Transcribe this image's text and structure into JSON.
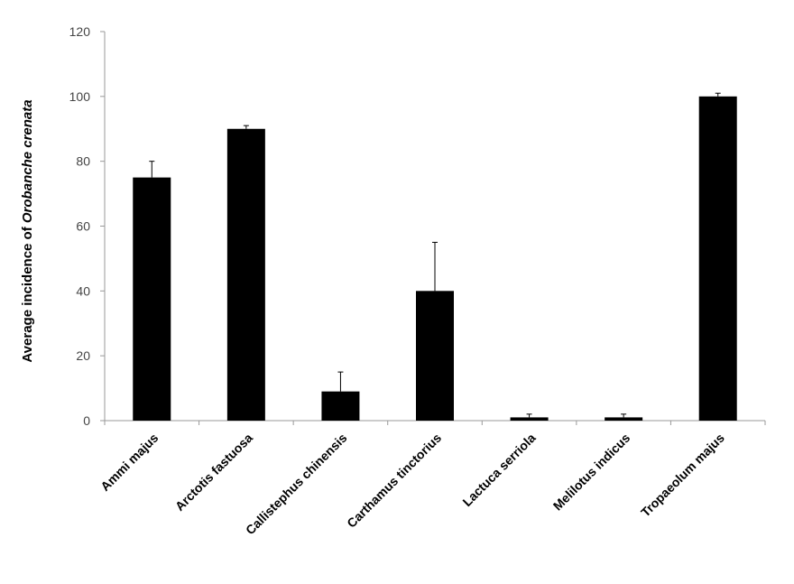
{
  "chart_data": {
    "type": "bar",
    "title": "",
    "xlabel": "",
    "ylabel": {
      "prefix": "Average incidence of ",
      "italic": "Orobanche crenata"
    },
    "categories": [
      "Ammi majus",
      "Arctotis fastuosa",
      "Callistephus chinensis",
      "Carthamus tinctorius",
      "Lactuca serriola",
      "Melilotus indicus",
      "Tropaeolum majus"
    ],
    "values": [
      75,
      90,
      9,
      40,
      1,
      1,
      100
    ],
    "error_upper": [
      5,
      1,
      6,
      15,
      1,
      1,
      1
    ],
    "ylim": [
      0,
      120
    ],
    "yticks": [
      "0",
      "20",
      "40",
      "60",
      "80",
      "100",
      "120"
    ],
    "grid": false,
    "legend": "none",
    "colors": {
      "bar": "#000000",
      "axis": "#999999",
      "error_bar": "#000000"
    }
  }
}
